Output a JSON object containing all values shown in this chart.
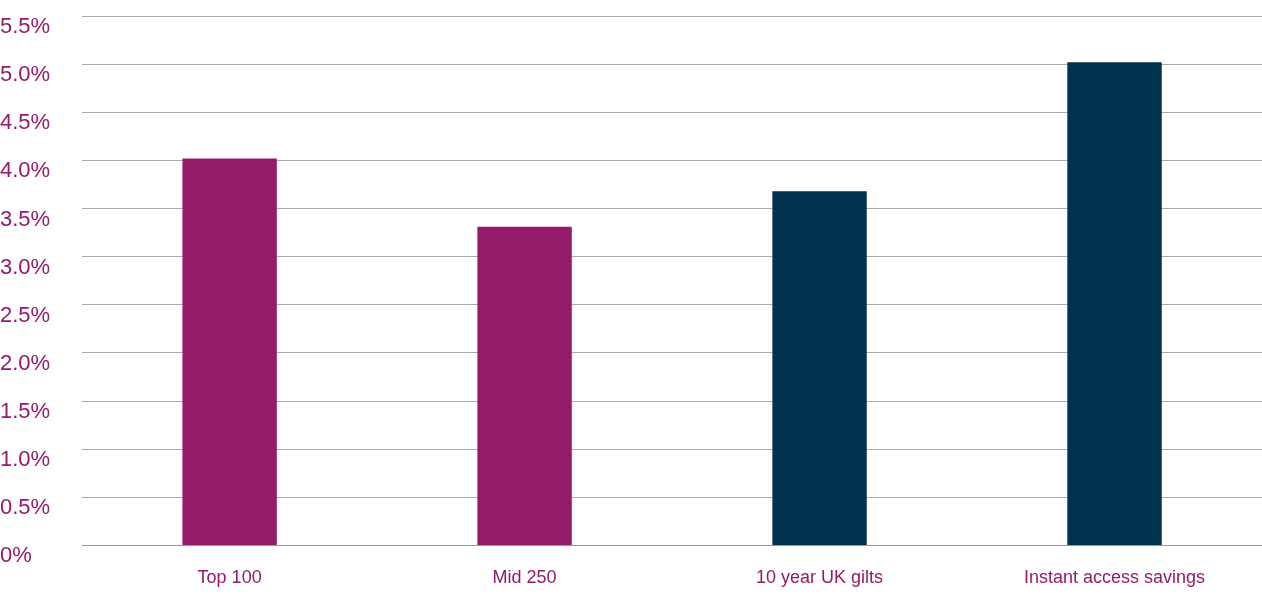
{
  "chart_data": {
    "type": "bar",
    "categories": [
      "Top 100",
      "Mid 250",
      "10 year UK gilts",
      "Instant access savings"
    ],
    "values": [
      4.02,
      3.31,
      3.68,
      5.02
    ],
    "colors": [
      "#941a6a",
      "#941a6a",
      "#00314f",
      "#00314f"
    ],
    "ylim": [
      0,
      5.5
    ],
    "yticks": [
      {
        "value": 0,
        "label": "0%"
      },
      {
        "value": 0.5,
        "label": "0.5%"
      },
      {
        "value": 1,
        "label": "1.0%"
      },
      {
        "value": 1.5,
        "label": "1.5%"
      },
      {
        "value": 2,
        "label": "2.0%"
      },
      {
        "value": 2.5,
        "label": "2.5%"
      },
      {
        "value": 3,
        "label": "3.0%"
      },
      {
        "value": 3.5,
        "label": "3.5%"
      },
      {
        "value": 4,
        "label": "4.0%"
      },
      {
        "value": 4.5,
        "label": "4.5%"
      },
      {
        "value": 5,
        "label": "5.0%"
      },
      {
        "value": 5.5,
        "label": "5.5%"
      }
    ],
    "grid": "y",
    "legend": false
  }
}
